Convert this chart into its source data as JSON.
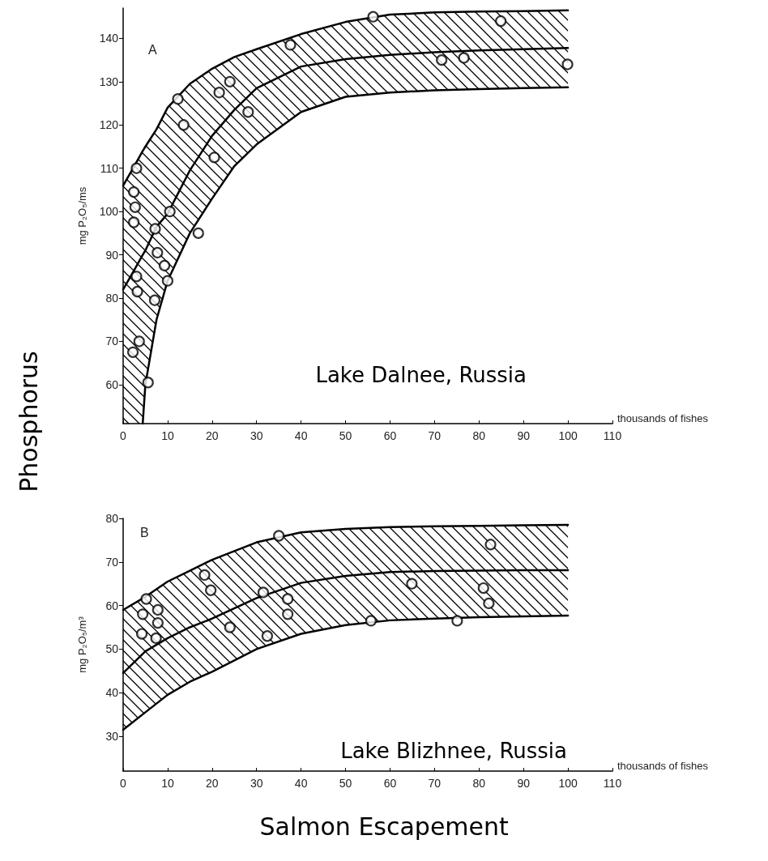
{
  "chart_data": [
    {
      "type": "scatter",
      "title": "A",
      "xlabel": "thousands of fishes",
      "ylabel": "mg P₂O₅/ms",
      "annotations": [
        "Lake Dalnee, Russia",
        "Phosphorus"
      ],
      "xlim": [
        0,
        110
      ],
      "xticks": [
        0,
        10,
        20,
        30,
        40,
        50,
        60,
        70,
        80,
        90,
        100,
        110
      ],
      "ylim": [
        51,
        147
      ],
      "yticks": [
        60,
        70,
        80,
        90,
        100,
        110,
        120,
        130,
        140
      ],
      "series": [
        {
          "type": "scatter",
          "color": "#000000",
          "marker": "circle",
          "x": [
            3.0,
            2.4,
            2.7,
            2.4,
            7.2,
            10.5,
            16.9,
            7.7,
            9.3,
            10.0,
            3.0,
            3.2,
            7.1,
            3.6,
            2.2,
            5.6,
            12.3,
            13.6,
            20.5,
            21.6,
            24.0,
            28.1,
            37.6,
            56.2,
            84.9,
            71.6,
            76.6,
            99.9
          ],
          "values": [
            110,
            104.5,
            101,
            97.5,
            96,
            100,
            95,
            90.5,
            87.5,
            84,
            85,
            81.5,
            79.5,
            70,
            67.5,
            60.5,
            126,
            120,
            112.5,
            127.5,
            130,
            123,
            138.5,
            145,
            144,
            135,
            135.5,
            134
          ]
        },
        {
          "type": "line",
          "color": "#000000",
          "marker": "none",
          "x": [
            0,
            2.5,
            4.4,
            5,
            7.5,
            10,
            15,
            20,
            25,
            30,
            40,
            50,
            60,
            70,
            80,
            90,
            100
          ],
          "values": [
            82,
            86.5,
            90,
            91,
            96.5,
            99.5,
            109.5,
            117.5,
            123.5,
            128.5,
            133.5,
            135.2,
            136.2,
            136.8,
            137.2,
            137.5,
            137.8
          ],
          "lower": [
            51,
            51,
            51,
            60,
            75,
            84,
            95,
            103,
            110.5,
            115.5,
            123,
            126.5,
            127.5,
            128,
            128.3,
            128.5,
            128.7
          ],
          "upper": [
            106,
            110.5,
            114,
            115,
            119,
            124,
            129.5,
            133,
            135.7,
            137.5,
            141,
            143.8,
            145.5,
            146,
            146.2,
            146.3,
            146.5
          ]
        },
        {
          "type": "line",
          "color": "#000000",
          "marker": "none",
          "x": [
            0,
            2.5,
            4.4,
            5,
            7.5,
            10,
            15,
            20,
            25,
            30,
            40,
            50,
            60,
            70,
            80,
            90,
            100
          ],
          "values": [
            106,
            110.5,
            114,
            115,
            119,
            124,
            129.5,
            133,
            135.7,
            137.5,
            141,
            143.8,
            145.5,
            146,
            146.2,
            146.3,
            146.5
          ]
        },
        {
          "type": "line",
          "color": "#000000",
          "marker": "none",
          "x": [
            4.4,
            5,
            7.5,
            10,
            15,
            20,
            25,
            30,
            40,
            50,
            60,
            70,
            80,
            90,
            100
          ],
          "values": [
            51,
            60,
            75,
            84,
            95,
            103,
            110.5,
            115.5,
            123,
            126.5,
            127.5,
            128,
            128.3,
            128.5,
            128.7
          ]
        }
      ]
    },
    {
      "type": "scatter",
      "title": "B",
      "xlabel": "thousands of fishes",
      "ylabel": "mg P₂O₅/m³",
      "annotations": [
        "Lake Blizhnee, Russia",
        "Salmon Escapement"
      ],
      "xlim": [
        0,
        110
      ],
      "xticks": [
        0,
        10,
        20,
        30,
        40,
        50,
        60,
        70,
        80,
        90,
        100,
        110
      ],
      "ylim": [
        22,
        80
      ],
      "yticks": [
        30,
        40,
        50,
        60,
        70,
        80
      ],
      "series": [
        {
          "type": "scatter",
          "color": "#000000",
          "marker": "circle",
          "x": [
            5.2,
            4.4,
            7.8,
            7.8,
            4.2,
            7.4,
            18.3,
            19.7,
            24.0,
            31.5,
            32.4,
            35.0,
            37.0,
            37.0,
            55.7,
            64.9,
            82.6,
            81.0,
            82.2,
            75.1
          ],
          "values": [
            61.5,
            58,
            59,
            56,
            53.5,
            52.5,
            67,
            63.5,
            55,
            63,
            53,
            76,
            61.5,
            58,
            56.5,
            65,
            74,
            64,
            60.5,
            56.5
          ]
        },
        {
          "type": "line",
          "color": "#000000",
          "marker": "none",
          "x": [
            0,
            5,
            10,
            15,
            20,
            30,
            40,
            50,
            60,
            70,
            80,
            90,
            100
          ],
          "values": [
            44.5,
            49.5,
            52.5,
            55,
            57,
            61.7,
            65.2,
            66.8,
            67.7,
            67.9,
            68,
            68.1,
            68.1
          ],
          "lower": [
            31.5,
            35.5,
            39.5,
            42.5,
            44.8,
            50,
            53.5,
            55.5,
            56.6,
            57,
            57.3,
            57.5,
            57.7
          ],
          "upper": [
            59,
            62,
            65.5,
            68,
            70.5,
            74.5,
            76.8,
            77.6,
            78,
            78.2,
            78.3,
            78.4,
            78.5
          ]
        },
        {
          "type": "line",
          "color": "#000000",
          "marker": "none",
          "x": [
            0,
            5,
            10,
            15,
            20,
            30,
            40,
            50,
            60,
            70,
            80,
            90,
            100
          ],
          "values": [
            59,
            62,
            65.5,
            68,
            70.5,
            74.5,
            76.8,
            77.6,
            78,
            78.2,
            78.3,
            78.4,
            78.5
          ]
        },
        {
          "type": "line",
          "color": "#000000",
          "marker": "none",
          "x": [
            0,
            5,
            10,
            15,
            20,
            30,
            40,
            50,
            60,
            70,
            80,
            90,
            100
          ],
          "values": [
            31.5,
            35.5,
            39.5,
            42.5,
            44.8,
            50,
            53.5,
            55.5,
            56.6,
            57,
            57.3,
            57.5,
            57.7
          ]
        }
      ]
    }
  ]
}
